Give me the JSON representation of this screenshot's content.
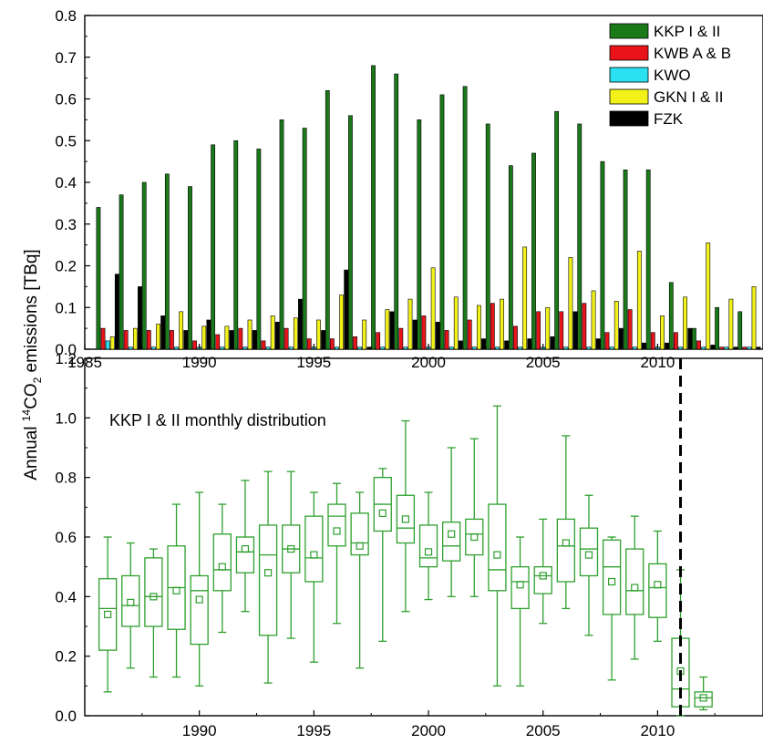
{
  "shared_ylabel": "Annual ",
  "shared_ylabel_sup": "14",
  "shared_ylabel_mid": "CO",
  "shared_ylabel_sub": "2",
  "shared_ylabel_end": " emissions [TBq]",
  "chart_data": [
    {
      "type": "bar",
      "panel": "top",
      "xlim": [
        1985,
        2014.6
      ],
      "ylim": [
        0,
        0.8
      ],
      "x_ticks": [
        "1985",
        "1990",
        "1995",
        "2000",
        "2005",
        "2010"
      ],
      "y_ticks": [
        "0.0",
        "0.1",
        "0.2",
        "0.3",
        "0.4",
        "0.5",
        "0.6",
        "0.7",
        "0.8"
      ],
      "legend_position": "top-right",
      "categories": [
        1986,
        1987,
        1988,
        1989,
        1990,
        1991,
        1992,
        1993,
        1994,
        1995,
        1996,
        1997,
        1998,
        1999,
        2000,
        2001,
        2002,
        2003,
        2004,
        2005,
        2006,
        2007,
        2008,
        2009,
        2010,
        2011,
        2012,
        2013,
        2014
      ],
      "series": [
        {
          "name": "KKP I &  II",
          "color": "#1a7a1a",
          "values": [
            0.34,
            0.37,
            0.4,
            0.42,
            0.39,
            0.49,
            0.5,
            0.48,
            0.55,
            0.53,
            0.62,
            0.56,
            0.68,
            0.66,
            0.55,
            0.61,
            0.63,
            0.54,
            0.44,
            0.47,
            0.57,
            0.54,
            0.45,
            0.43,
            0.43,
            0.16,
            0.05,
            0.1,
            0.09
          ]
        },
        {
          "name": "KWB A &  B",
          "color": "#e8141a",
          "values": [
            0.05,
            0.045,
            0.045,
            0.045,
            0.02,
            0.035,
            0.05,
            0.02,
            0.05,
            0.025,
            0.025,
            0.03,
            0.04,
            0.05,
            0.08,
            0.045,
            0.07,
            0.11,
            0.055,
            0.09,
            0.09,
            0.11,
            0.04,
            0.095,
            0.04,
            0.04,
            0.02,
            0.005,
            0.005
          ]
        },
        {
          "name": "KWO",
          "color": "#2be0f0",
          "values": [
            0.02,
            0.005,
            0.005,
            0.005,
            0.005,
            0.005,
            0.005,
            0.005,
            0.005,
            0.005,
            0.005,
            0.005,
            0.005,
            0.005,
            0.005,
            0.005,
            0.005,
            0.005,
            0.005,
            0.005,
            0.005,
            0.005,
            0.005,
            0.005,
            0.005,
            0.005,
            0.005,
            0.005,
            0.005
          ]
        },
        {
          "name": "GKN I &  II",
          "color": "#f2f21a",
          "values": [
            0.03,
            0.05,
            0.06,
            0.09,
            0.055,
            0.055,
            0.07,
            0.08,
            0.075,
            0.07,
            0.13,
            0.07,
            0.095,
            0.12,
            0.195,
            0.125,
            0.105,
            0.12,
            0.245,
            0.1,
            0.22,
            0.14,
            0.115,
            0.235,
            0.08,
            0.125,
            0.255,
            0.12,
            0.15
          ]
        },
        {
          "name": "FZK",
          "color": "#000000",
          "values": [
            0.18,
            0.15,
            0.08,
            0.045,
            0.07,
            0.045,
            0.045,
            0.065,
            0.12,
            0.045,
            0.19,
            0.005,
            0.09,
            0.07,
            0.065,
            0.02,
            0.025,
            0.02,
            0.025,
            0.03,
            0.09,
            0.025,
            0.05,
            0.015,
            0.015,
            0.05,
            0.01,
            0.005,
            0.005
          ]
        }
      ]
    },
    {
      "type": "box",
      "panel": "bottom",
      "annotation": "KKP I & II monthly distribution",
      "xlim": [
        1985.0,
        2014.6
      ],
      "ylim": [
        0,
        1.2
      ],
      "x_ticks": [
        "1990",
        "1995",
        "2000",
        "2005",
        "2010"
      ],
      "y_ticks": [
        "0.0",
        "0.2",
        "0.4",
        "0.6",
        "0.8",
        "1.0",
        "1.2"
      ],
      "vline_x": 2011,
      "color": "#2ea02e",
      "boxes": [
        {
          "x": 1986,
          "min": 0.08,
          "q1": 0.22,
          "median": 0.36,
          "q3": 0.46,
          "max": 0.6,
          "mean": 0.34
        },
        {
          "x": 1987,
          "min": 0.16,
          "q1": 0.3,
          "median": 0.37,
          "q3": 0.47,
          "max": 0.58,
          "mean": 0.38
        },
        {
          "x": 1988,
          "min": 0.13,
          "q1": 0.3,
          "median": 0.4,
          "q3": 0.53,
          "max": 0.56,
          "mean": 0.4
        },
        {
          "x": 1989,
          "min": 0.13,
          "q1": 0.29,
          "median": 0.43,
          "q3": 0.57,
          "max": 0.71,
          "mean": 0.42
        },
        {
          "x": 1990,
          "min": 0.1,
          "q1": 0.24,
          "median": 0.42,
          "q3": 0.47,
          "max": 0.75,
          "mean": 0.39
        },
        {
          "x": 1991,
          "min": 0.28,
          "q1": 0.42,
          "median": 0.49,
          "q3": 0.61,
          "max": 0.71,
          "mean": 0.5
        },
        {
          "x": 1992,
          "min": 0.35,
          "q1": 0.48,
          "median": 0.55,
          "q3": 0.6,
          "max": 0.79,
          "mean": 0.56
        },
        {
          "x": 1993,
          "min": 0.11,
          "q1": 0.27,
          "median": 0.54,
          "q3": 0.64,
          "max": 0.82,
          "mean": 0.48
        },
        {
          "x": 1994,
          "min": 0.26,
          "q1": 0.48,
          "median": 0.56,
          "q3": 0.64,
          "max": 0.82,
          "mean": 0.56
        },
        {
          "x": 1995,
          "min": 0.18,
          "q1": 0.45,
          "median": 0.53,
          "q3": 0.67,
          "max": 0.75,
          "mean": 0.54
        },
        {
          "x": 1996,
          "min": 0.31,
          "q1": 0.57,
          "median": 0.67,
          "q3": 0.71,
          "max": 0.78,
          "mean": 0.62
        },
        {
          "x": 1997,
          "min": 0.16,
          "q1": 0.54,
          "median": 0.58,
          "q3": 0.68,
          "max": 0.75,
          "mean": 0.57
        },
        {
          "x": 1998,
          "min": 0.25,
          "q1": 0.62,
          "median": 0.71,
          "q3": 0.8,
          "max": 0.83,
          "mean": 0.68
        },
        {
          "x": 1999,
          "min": 0.35,
          "q1": 0.58,
          "median": 0.63,
          "q3": 0.74,
          "max": 0.99,
          "mean": 0.66
        },
        {
          "x": 2000,
          "min": 0.39,
          "q1": 0.5,
          "median": 0.53,
          "q3": 0.64,
          "max": 0.75,
          "mean": 0.55
        },
        {
          "x": 2001,
          "min": 0.4,
          "q1": 0.52,
          "median": 0.57,
          "q3": 0.65,
          "max": 0.9,
          "mean": 0.61
        },
        {
          "x": 2002,
          "min": 0.4,
          "q1": 0.54,
          "median": 0.61,
          "q3": 0.66,
          "max": 0.93,
          "mean": 0.6
        },
        {
          "x": 2003,
          "min": 0.1,
          "q1": 0.42,
          "median": 0.49,
          "q3": 0.71,
          "max": 1.04,
          "mean": 0.54
        },
        {
          "x": 2004,
          "min": 0.1,
          "q1": 0.36,
          "median": 0.45,
          "q3": 0.5,
          "max": 0.6,
          "mean": 0.44
        },
        {
          "x": 2005,
          "min": 0.31,
          "q1": 0.41,
          "median": 0.47,
          "q3": 0.5,
          "max": 0.66,
          "mean": 0.47
        },
        {
          "x": 2006,
          "min": 0.36,
          "q1": 0.45,
          "median": 0.57,
          "q3": 0.66,
          "max": 0.94,
          "mean": 0.58
        },
        {
          "x": 2007,
          "min": 0.27,
          "q1": 0.47,
          "median": 0.56,
          "q3": 0.63,
          "max": 0.74,
          "mean": 0.54
        },
        {
          "x": 2008,
          "min": 0.12,
          "q1": 0.34,
          "median": 0.5,
          "q3": 0.59,
          "max": 0.6,
          "mean": 0.45
        },
        {
          "x": 2009,
          "min": 0.19,
          "q1": 0.34,
          "median": 0.42,
          "q3": 0.56,
          "max": 0.67,
          "mean": 0.43
        },
        {
          "x": 2010,
          "min": 0.25,
          "q1": 0.33,
          "median": 0.43,
          "q3": 0.51,
          "max": 0.62,
          "mean": 0.44
        },
        {
          "x": 2011,
          "min": 0.0,
          "q1": 0.03,
          "median": 0.09,
          "q3": 0.26,
          "max": 0.49,
          "mean": 0.15
        },
        {
          "x": 2012,
          "min": 0.02,
          "q1": 0.03,
          "median": 0.06,
          "q3": 0.08,
          "max": 0.13,
          "mean": 0.06
        }
      ]
    }
  ]
}
